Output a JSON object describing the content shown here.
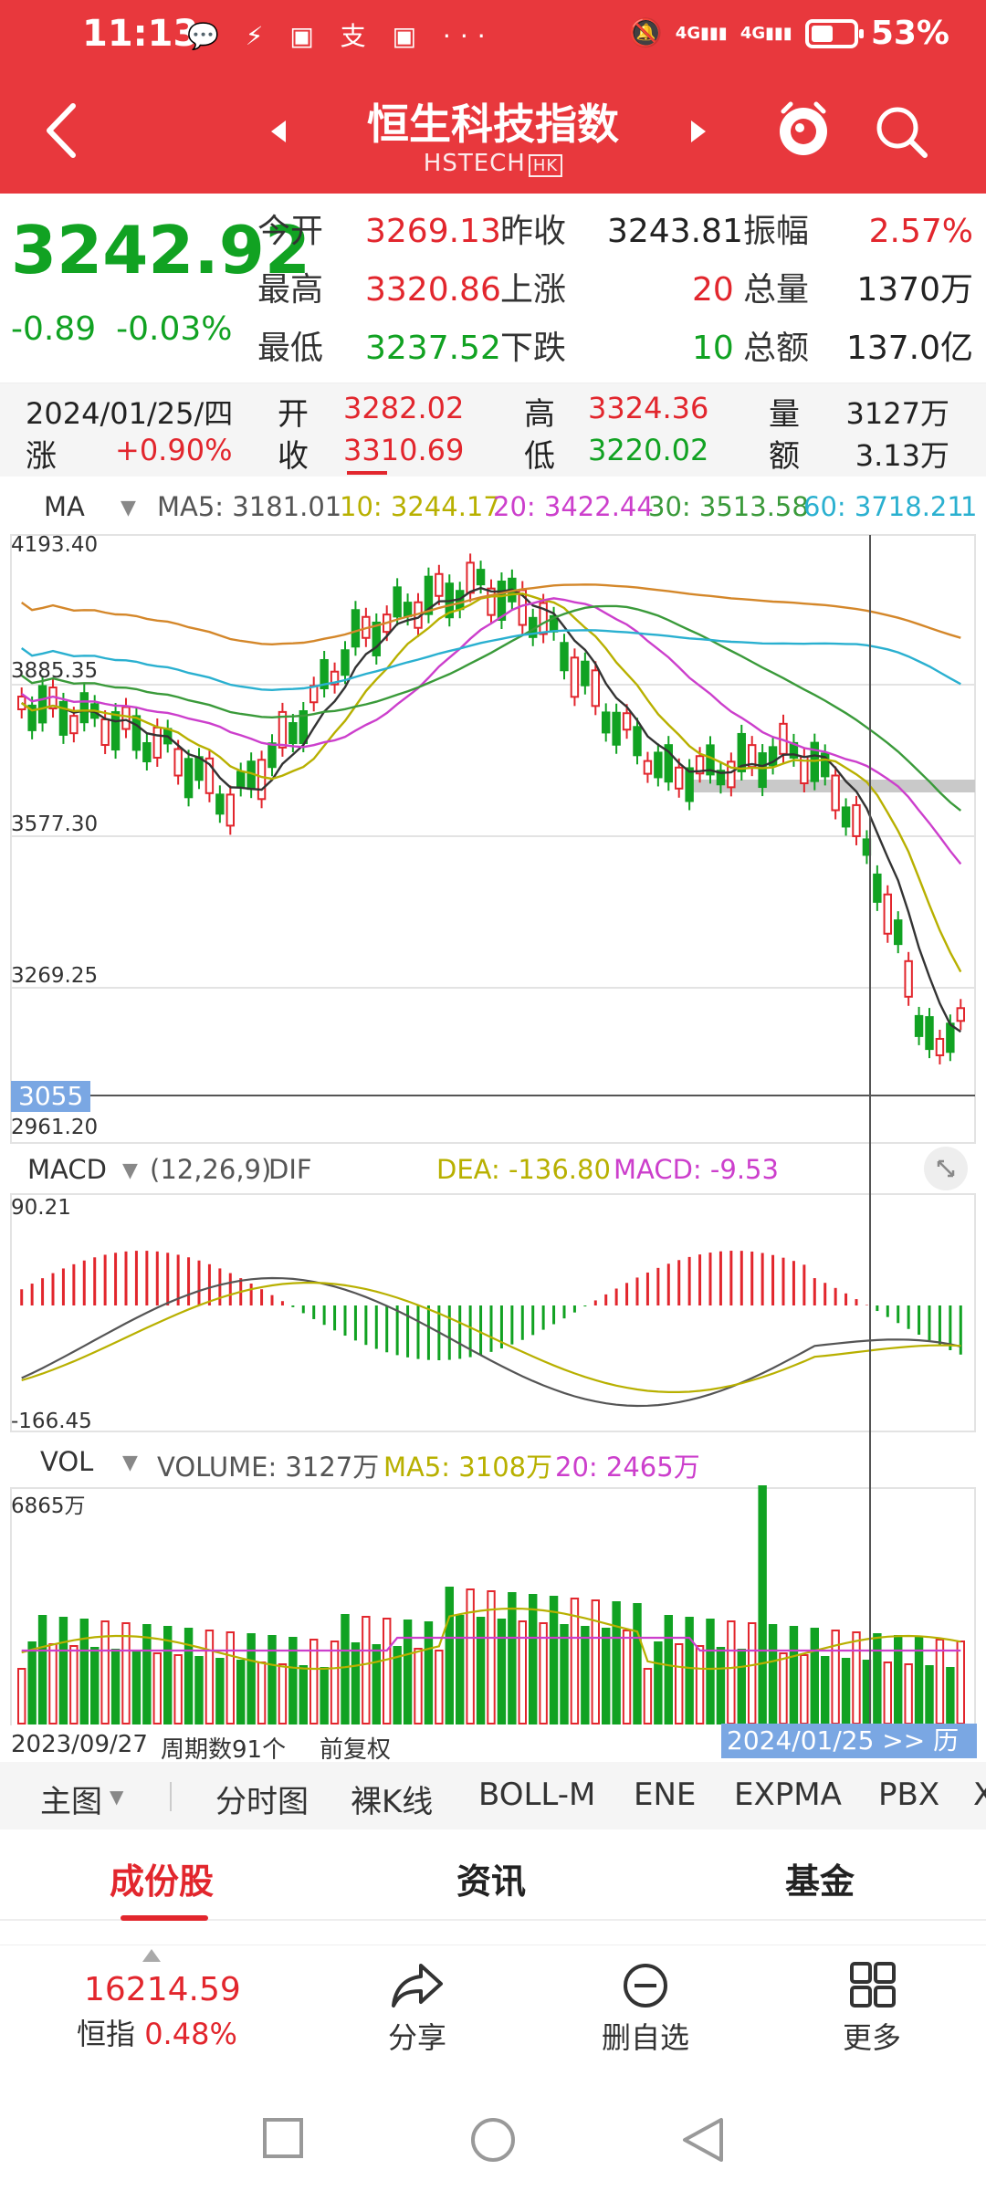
{
  "status_bar": {
    "time": "11:13",
    "notification_icons": [
      "chat-bubble-icon",
      "hand-icon",
      "news-app-icon",
      "alipay-icon",
      "app-icon",
      "more-dots-icon"
    ],
    "battery_percent": "53%",
    "battery_level": 0.53,
    "network": [
      "4G",
      "4G"
    ]
  },
  "header": {
    "title": "恒生科技指数",
    "code": "HSTECH",
    "market_badge": "HK",
    "back_icon": "back-chevron-icon",
    "search_icon": "search-icon"
  },
  "quote": {
    "price": "3242.92",
    "change": "-0.89",
    "change_pct": "-0.03%",
    "open_label": "今开",
    "open": "3269.13",
    "prev_close_label": "昨收",
    "prev_close": "3243.81",
    "amplitude_label": "振幅",
    "amplitude": "2.57%",
    "high_label": "最高",
    "high": "3320.86",
    "up_label": "上涨",
    "up": "20",
    "volume_label": "总量",
    "volume": "1370万",
    "low_label": "最低",
    "low": "3237.52",
    "down_label": "下跌",
    "down": "10",
    "turnover_label": "总额",
    "turnover": "137.0亿"
  },
  "day_info": {
    "date": "2024/01/25/四",
    "change_label": "涨",
    "change": "+0.90%",
    "open_label": "开",
    "open": "3282.02",
    "close_label": "收",
    "close": "3310.69",
    "high_label": "高",
    "high": "3324.36",
    "low_label": "低",
    "low": "3220.02",
    "volume_label": "量",
    "volume": "3127万",
    "turnover_label": "额",
    "turnover": "3.13万"
  },
  "ma_legend": {
    "name": "MA",
    "ma5": "MA5: 3181.01",
    "ma10": "10: 3244.17",
    "ma20": "20: 3422.44",
    "ma30": "30: 3513.58",
    "ma60": "60: 3718.21",
    "more": "1"
  },
  "price_axis": {
    "labels": [
      "4193.40",
      "3885.35",
      "3577.30",
      "3269.25",
      "2961.20"
    ],
    "cursor_price": "3055"
  },
  "macd_legend": {
    "name": "MACD",
    "params": "(12,26,9)",
    "dif": "DIF",
    "dea": "DEA: -136.80",
    "macd": "MACD: -9.53",
    "axis_max": "90.21",
    "axis_min": "-166.45"
  },
  "volume_legend": {
    "name": "VOL",
    "volume": "VOLUME: 3127万",
    "ma5": "MA5: 3108万",
    "ma20": "20: 2465万",
    "axis_max": "6865万"
  },
  "footer_axis": {
    "start_date": "2023/09/27",
    "periods": "周期数91个",
    "adjust": "前复权",
    "cursor_date": "2024/01/25",
    "cursor_suffix": "历"
  },
  "indicator_tabs": [
    "主图",
    "分时图",
    "裸K线",
    "BOLL-M",
    "ENE",
    "EXPMA",
    "PBX",
    "X"
  ],
  "section_tabs": [
    "成份股",
    "资讯",
    "基金"
  ],
  "bottom_bar": {
    "hsi_value": "16214.59",
    "hsi_name": "恒指",
    "hsi_change": "0.48%",
    "share": "分享",
    "remove_watch": "删自选",
    "more": "更多"
  },
  "colors": {
    "brand_red": "#e8383d",
    "up_red": "#e2262d",
    "down_green": "#11a222",
    "ma5": "#333333",
    "ma10": "#b8b000",
    "ma20": "#cc3fcc",
    "ma30": "#3a9a3a",
    "ma60": "#2ab0d0",
    "ma120": "#d4872a"
  }
}
